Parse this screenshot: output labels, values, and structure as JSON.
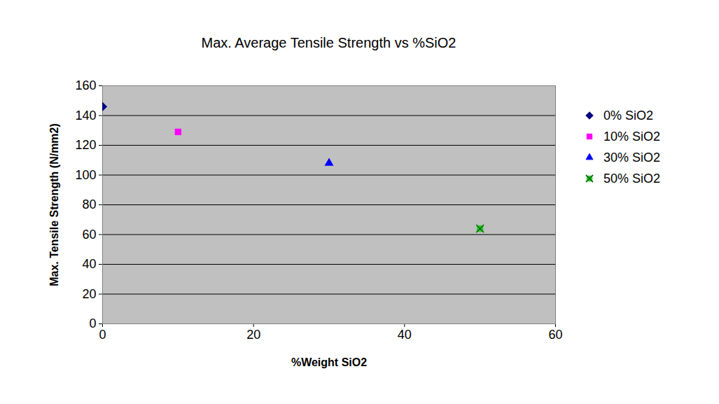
{
  "chart_data": {
    "type": "scatter",
    "title": "Max. Average Tensile Strength vs %SiO2",
    "x_label": "%Weight SiO2",
    "y_label": "Max. Tensile Strength (N/mm2)",
    "xlim": [
      0,
      60
    ],
    "xticks": [
      0,
      20,
      40,
      60
    ],
    "ylim": [
      0,
      160
    ],
    "yticks": [
      0,
      20,
      40,
      60,
      80,
      100,
      120,
      140,
      160
    ],
    "grid": true,
    "legend": "right",
    "series": [
      {
        "name": "0% SiO2",
        "color": "#000080",
        "marker": "diamond",
        "x": [
          0
        ],
        "values": [
          146
        ]
      },
      {
        "name": "10% SiO2",
        "color": "#ff00ff",
        "marker": "square",
        "x": [
          10
        ],
        "values": [
          129
        ]
      },
      {
        "name": "30% SiO2",
        "color": "#0000ff",
        "marker": "triangle",
        "x": [
          30
        ],
        "values": [
          108
        ]
      },
      {
        "name": "50% SiO2",
        "color": "#33cc33",
        "marker": "x-square",
        "x": [
          50
        ],
        "values": [
          64
        ]
      }
    ]
  }
}
